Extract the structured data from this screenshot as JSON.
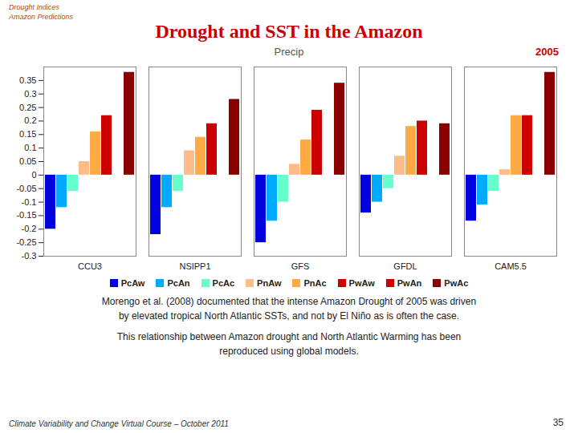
{
  "chart_data": {
    "type": "bar",
    "title": "Drought and SST in the Amazon",
    "subtitle": "Precip",
    "categories": [
      "CCU3",
      "NSIPP1",
      "GFS",
      "GFDL",
      "CAM5.5"
    ],
    "series": [
      {
        "name": "PcAw",
        "color": "#0000dd",
        "values": [
          -0.2,
          -0.22,
          -0.25,
          -0.14,
          -0.17
        ]
      },
      {
        "name": "PcAn",
        "color": "#00aaff",
        "values": [
          -0.12,
          -0.12,
          -0.17,
          -0.1,
          -0.11
        ]
      },
      {
        "name": "PcAc",
        "color": "#66ffcc",
        "values": [
          -0.06,
          -0.06,
          -0.1,
          -0.05,
          -0.06
        ]
      },
      {
        "name": "PnAw",
        "color": "#ffbb88",
        "values": [
          0.05,
          0.09,
          0.04,
          0.07,
          0.02
        ]
      },
      {
        "name": "PnAc",
        "color": "#ffaa44",
        "values": [
          0.16,
          0.14,
          0.13,
          0.18,
          0.22
        ]
      },
      {
        "name": "PwAw",
        "color": "#cc0000",
        "values": [
          0.22,
          0.19,
          0.24,
          0.2,
          0.22
        ]
      },
      {
        "name": "PwAn",
        "color": "#cc0000",
        "values": [
          0.0,
          0.0,
          0.0,
          0.0,
          0.0
        ]
      },
      {
        "name": "PwAc",
        "color": "#880000",
        "values": [
          0.38,
          0.28,
          0.34,
          0.19,
          0.38
        ]
      }
    ],
    "ylim": [
      -0.3,
      0.4
    ],
    "yticks": [
      -0.3,
      -0.25,
      -0.2,
      -0.15,
      -0.1,
      -0.05,
      0,
      0.05,
      0.1,
      0.15,
      0.2,
      0.25,
      0.3,
      0.35
    ],
    "legend": "bottom",
    "annotations": [
      "2005",
      "Drought Indices",
      "Amazon Predictions",
      "Morengo et al. (2008) documented that the intense Amazon Drought of 2005 was driven\n    by elevated tropical North Atlantic SSTs, and not by El Niño as is often the case.",
      "This relationship between Amazon drought and North Atlantic Warming has been\n    reproduced using global models.",
      "Climate Variability and Change Virtual Course – October 2011",
      "35"
    ]
  }
}
